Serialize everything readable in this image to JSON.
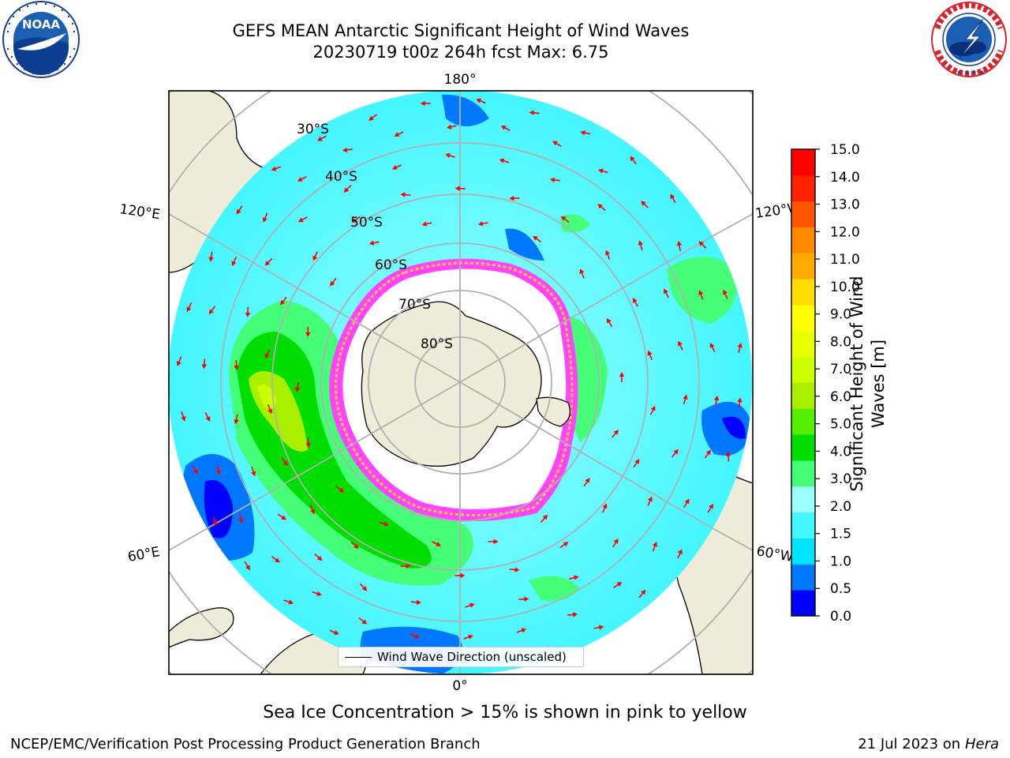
{
  "header": {
    "title_line1": "GEFS MEAN Antarctic Significant Height of Wind Waves",
    "title_line2": "20230719 t00z 264h fcst   Max: 6.75"
  },
  "logos": {
    "left": {
      "name": "NOAA",
      "ring_text": "NATIONAL OCEANIC AND ATMOSPHERIC ADMINISTRATION · U.S. DEPARTMENT OF COMMERCE",
      "center_text": "NOAA"
    },
    "right": {
      "name": "National Weather Service",
      "ring_text": "NATIONAL WEATHER SERVICE"
    }
  },
  "map": {
    "projection": "south-polar-stereographic",
    "longitude_labels": {
      "top": "180°",
      "bottom": "0°",
      "left_upper": "120°E",
      "left_lower": "60°E",
      "right_upper": "120°W",
      "right_lower": "60°W"
    },
    "latitude_labels": [
      "30°S",
      "40°S",
      "50°S",
      "60°S",
      "70°S",
      "80°S"
    ],
    "sea_ice_colors": [
      "#ff44ff",
      "#ffcc33"
    ],
    "land_color": "#efecda",
    "arrow_color": "#ff0000"
  },
  "legend": {
    "label": "Wind Wave Direction (unscaled)"
  },
  "colorbar": {
    "title": "Significant Height of Wind Waves [m]",
    "ticks": [
      "0.0",
      "0.5",
      "1.0",
      "1.5",
      "2.0",
      "3.0",
      "4.0",
      "5.0",
      "6.0",
      "7.0",
      "8.0",
      "9.0",
      "10.0",
      "11.0",
      "12.0",
      "13.0",
      "14.0",
      "15.0"
    ],
    "colors": [
      "#0000ff",
      "#0077ff",
      "#00e5ff",
      "#44f6ff",
      "#99ffff",
      "#44ff77",
      "#00dd00",
      "#55ee00",
      "#aaee00",
      "#ccff00",
      "#e7ff00",
      "#ffff00",
      "#ffdd00",
      "#ffaa00",
      "#ff8800",
      "#ff5500",
      "#ff2200",
      "#ff0000"
    ]
  },
  "footnote": "Sea Ice Concentration > 15% is shown in pink to yellow",
  "footer": {
    "left": "NCEP/EMC/Verification Post Processing Product Generation Branch",
    "right_date": "21 Jul 2023 on",
    "right_host": "Hera"
  }
}
